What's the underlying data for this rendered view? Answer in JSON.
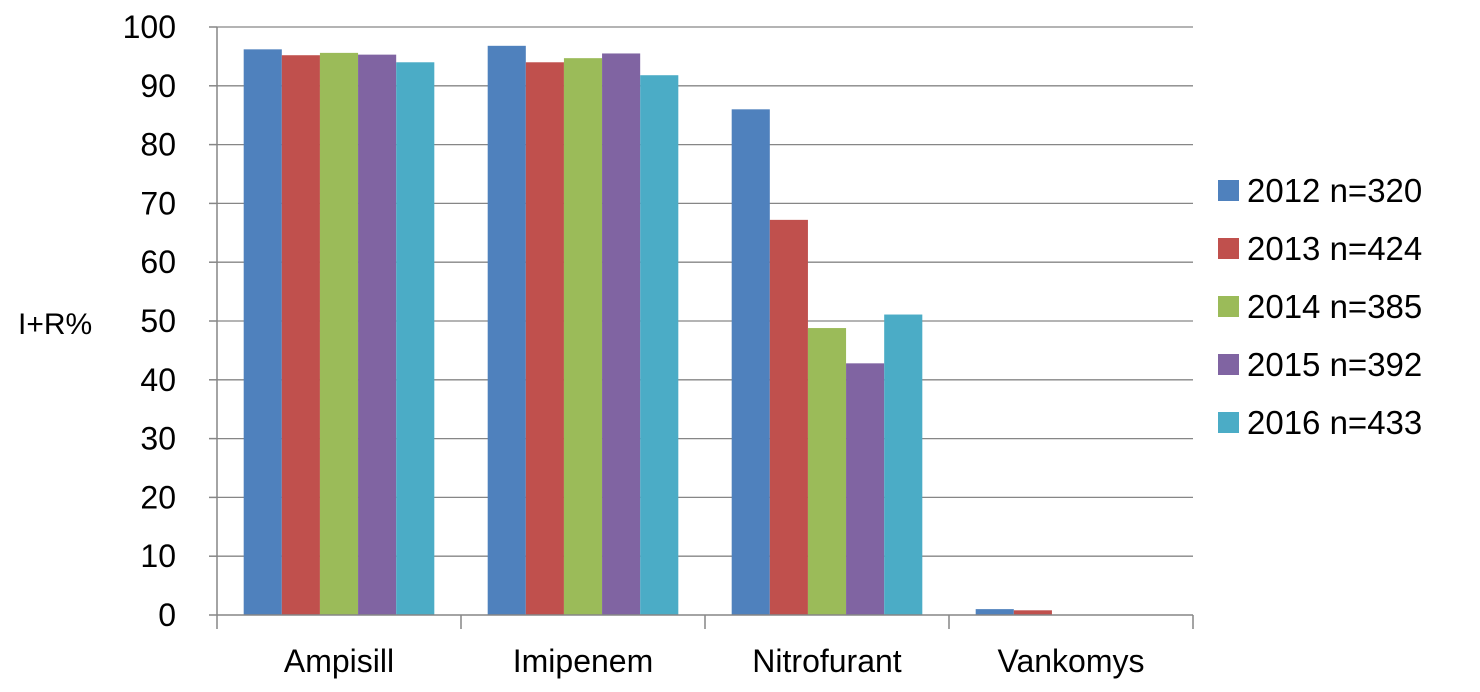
{
  "chart_data": {
    "type": "bar",
    "title": "",
    "xlabel": "",
    "ylabel": "I+R%",
    "ylim": [
      0,
      100
    ],
    "yticks": [
      0,
      10,
      20,
      30,
      40,
      50,
      60,
      70,
      80,
      90,
      100
    ],
    "grid": true,
    "legend_position": "right",
    "categories": [
      "Ampisill",
      "Imipenem",
      "Nitrofurant",
      "Vankomys"
    ],
    "series": [
      {
        "name": "2012 n=320",
        "color": "#4F81BD",
        "values": [
          96.2,
          96.8,
          86.0,
          1.0
        ]
      },
      {
        "name": "2013 n=424",
        "color": "#C0504D",
        "values": [
          95.2,
          94.0,
          67.2,
          0.8
        ]
      },
      {
        "name": "2014 n=385",
        "color": "#9BBB59",
        "values": [
          95.6,
          94.7,
          48.8,
          0
        ]
      },
      {
        "name": "2015 n=392",
        "color": "#8064A2",
        "values": [
          95.3,
          95.5,
          42.8,
          0
        ]
      },
      {
        "name": "2016 n=433",
        "color": "#4BACC6",
        "values": [
          94.0,
          91.8,
          51.1,
          0
        ]
      }
    ]
  }
}
